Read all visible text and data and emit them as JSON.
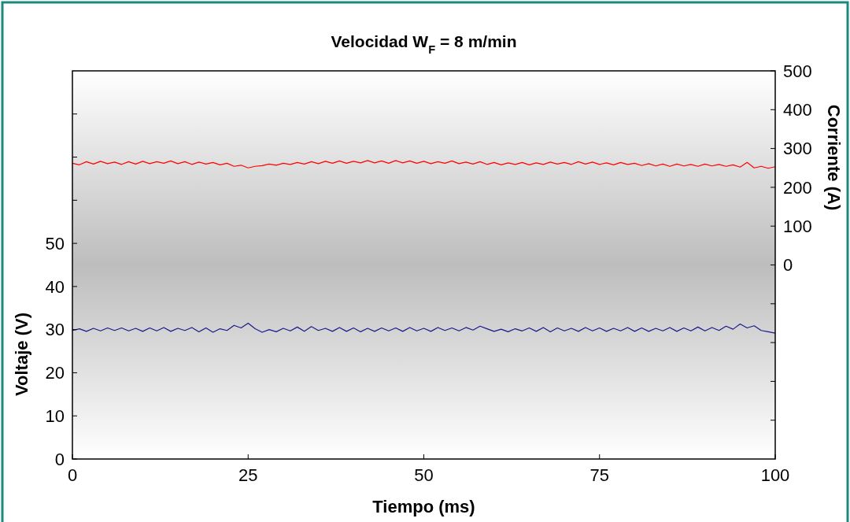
{
  "chart_data": {
    "type": "line",
    "title": "Velocidad W$_{F}$ = 8 m/min",
    "xlabel": "Tiempo (ms)",
    "ylabel": "Voltaje (V)",
    "y2label": "Corriente (A)",
    "xlim": [
      0,
      100
    ],
    "xticks": [
      0,
      25,
      50,
      75,
      100
    ],
    "ylim": [
      0,
      90
    ],
    "yticks": [
      0,
      10,
      20,
      30,
      40,
      50,
      {
        "value": 60,
        "label": null
      },
      {
        "value": 70,
        "label": null
      },
      {
        "value": 80,
        "label": null
      }
    ],
    "y2lim": [
      -500,
      500
    ],
    "y2ticks": [
      {
        "value": -400,
        "label": null
      },
      {
        "value": -300,
        "label": null
      },
      {
        "value": -200,
        "label": null
      },
      {
        "value": -100,
        "label": null
      },
      0,
      100,
      200,
      300,
      400,
      500
    ],
    "grid": false,
    "line_style": "solid",
    "marker": "none",
    "x": [
      0,
      1,
      2,
      3,
      4,
      5,
      6,
      7,
      8,
      9,
      10,
      11,
      12,
      13,
      14,
      15,
      16,
      17,
      18,
      19,
      20,
      21,
      22,
      23,
      24,
      25,
      26,
      27,
      28,
      29,
      30,
      31,
      32,
      33,
      34,
      35,
      36,
      37,
      38,
      39,
      40,
      41,
      42,
      43,
      44,
      45,
      46,
      47,
      48,
      49,
      50,
      51,
      52,
      53,
      54,
      55,
      56,
      57,
      58,
      59,
      60,
      61,
      62,
      63,
      64,
      65,
      66,
      67,
      68,
      69,
      70,
      71,
      72,
      73,
      74,
      75,
      76,
      77,
      78,
      79,
      80,
      81,
      82,
      83,
      84,
      85,
      86,
      87,
      88,
      89,
      90,
      91,
      92,
      93,
      94,
      95,
      96,
      97,
      98,
      99,
      100
    ],
    "series": [
      {
        "color": "#ff0000",
        "axis": "y2",
        "values": [
          262,
          258,
          266,
          260,
          267,
          261,
          265,
          259,
          266,
          260,
          267,
          261,
          266,
          262,
          268,
          261,
          266,
          259,
          265,
          260,
          264,
          258,
          262,
          254,
          257,
          250,
          254,
          256,
          260,
          257,
          262,
          259,
          264,
          260,
          266,
          261,
          267,
          262,
          268,
          262,
          267,
          263,
          269,
          263,
          268,
          262,
          269,
          263,
          268,
          262,
          267,
          261,
          266,
          262,
          268,
          261,
          265,
          260,
          266,
          259,
          264,
          258,
          263,
          259,
          264,
          258,
          263,
          259,
          265,
          260,
          264,
          259,
          266,
          260,
          265,
          259,
          263,
          258,
          264,
          259,
          262,
          256,
          261,
          255,
          260,
          254,
          260,
          255,
          259,
          254,
          260,
          255,
          259,
          254,
          258,
          252,
          264,
          250,
          254,
          249,
          253
        ]
      },
      {
        "color": "#1a1a8c",
        "axis": "y",
        "values": [
          29.8,
          30.2,
          29.6,
          30.3,
          29.7,
          30.4,
          29.8,
          30.4,
          29.7,
          30.3,
          29.6,
          30.4,
          29.7,
          30.5,
          29.6,
          30.3,
          29.8,
          30.5,
          29.5,
          30.4,
          29.4,
          30.2,
          29.8,
          31.0,
          30.4,
          31.5,
          30.2,
          29.4,
          30.0,
          29.5,
          30.3,
          29.7,
          30.6,
          29.6,
          30.7,
          29.8,
          30.3,
          29.6,
          30.5,
          29.6,
          30.4,
          29.5,
          30.3,
          29.6,
          30.4,
          29.7,
          30.4,
          29.6,
          30.5,
          29.7,
          30.3,
          29.6,
          30.5,
          29.8,
          30.4,
          29.7,
          30.5,
          29.9,
          30.8,
          30.2,
          29.6,
          30.1,
          29.5,
          30.2,
          29.7,
          30.4,
          29.6,
          30.5,
          29.5,
          30.4,
          29.7,
          30.3,
          29.6,
          30.5,
          29.7,
          30.4,
          29.6,
          30.3,
          29.7,
          30.5,
          29.6,
          30.4,
          29.6,
          30.3,
          29.7,
          30.5,
          29.6,
          30.4,
          29.7,
          30.6,
          29.7,
          30.5,
          29.8,
          30.8,
          30.1,
          31.3,
          30.4,
          30.9,
          29.8,
          29.5,
          29.2
        ]
      }
    ]
  }
}
